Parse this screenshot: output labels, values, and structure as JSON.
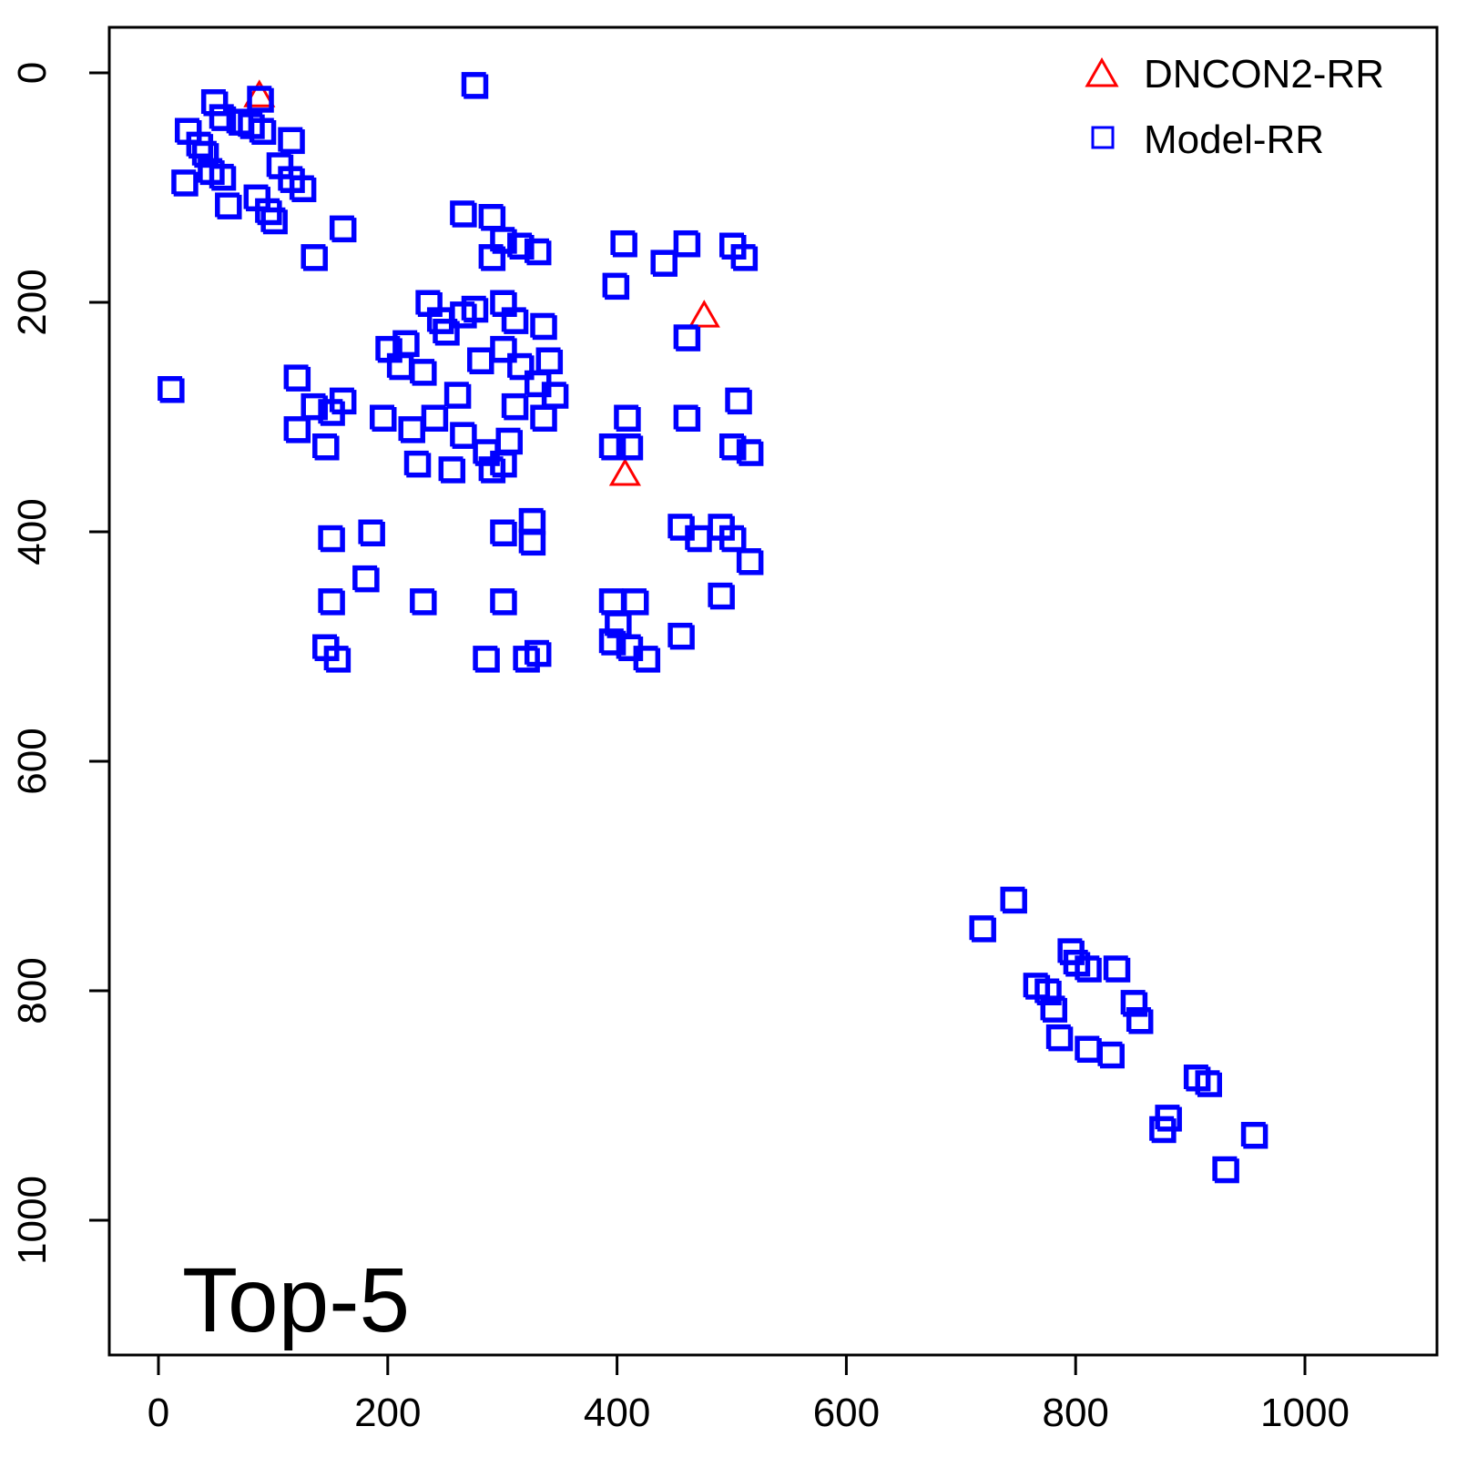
{
  "chart_data": {
    "type": "scatter",
    "title": "",
    "xlabel": "",
    "ylabel": "",
    "xlim": [
      -20,
      1085
    ],
    "ylim": [
      1080,
      -40
    ],
    "y_reversed": true,
    "grid": false,
    "legend_position": "top-right",
    "panel_label": "Top-5",
    "x_ticks": [
      0,
      200,
      400,
      600,
      800,
      1000
    ],
    "y_ticks": [
      0,
      200,
      400,
      600,
      800,
      1000
    ],
    "x_tick_labels": [
      "0",
      "200",
      "400",
      "600",
      "800",
      "1000"
    ],
    "y_tick_labels": [
      "0",
      "200",
      "400",
      "600",
      "800",
      "1000"
    ],
    "series": [
      {
        "name": "DNCON2-RR",
        "marker": "triangle",
        "color": "#ff0000",
        "points": [
          [
            88,
            20
          ],
          [
            476,
            212
          ],
          [
            407,
            350
          ]
        ]
      },
      {
        "name": "Model-RR",
        "marker": "square",
        "color": "#0000ff",
        "points": [
          [
            48,
            25
          ],
          [
            88,
            22
          ],
          [
            55,
            38
          ],
          [
            70,
            42
          ],
          [
            80,
            45
          ],
          [
            90,
            50
          ],
          [
            25,
            50
          ],
          [
            35,
            62
          ],
          [
            40,
            70
          ],
          [
            45,
            85
          ],
          [
            55,
            90
          ],
          [
            22,
            95
          ],
          [
            60,
            115
          ],
          [
            85,
            108
          ],
          [
            95,
            120
          ],
          [
            100,
            128
          ],
          [
            115,
            58
          ],
          [
            105,
            80
          ],
          [
            115,
            92
          ],
          [
            125,
            100
          ],
          [
            135,
            160
          ],
          [
            160,
            135
          ],
          [
            10,
            275
          ],
          [
            120,
            265
          ],
          [
            120,
            310
          ],
          [
            135,
            290
          ],
          [
            150,
            295
          ],
          [
            145,
            325
          ],
          [
            160,
            285
          ],
          [
            150,
            405
          ],
          [
            180,
            440
          ],
          [
            185,
            400
          ],
          [
            150,
            460
          ],
          [
            145,
            500
          ],
          [
            155,
            510
          ],
          [
            275,
            10
          ],
          [
            265,
            122
          ],
          [
            290,
            125
          ],
          [
            300,
            145
          ],
          [
            315,
            150
          ],
          [
            330,
            155
          ],
          [
            290,
            160
          ],
          [
            235,
            200
          ],
          [
            245,
            215
          ],
          [
            265,
            210
          ],
          [
            250,
            225
          ],
          [
            275,
            205
          ],
          [
            215,
            235
          ],
          [
            200,
            240
          ],
          [
            210,
            255
          ],
          [
            230,
            260
          ],
          [
            260,
            280
          ],
          [
            280,
            250
          ],
          [
            300,
            200
          ],
          [
            310,
            215
          ],
          [
            335,
            220
          ],
          [
            300,
            240
          ],
          [
            315,
            255
          ],
          [
            340,
            250
          ],
          [
            330,
            270
          ],
          [
            310,
            290
          ],
          [
            345,
            280
          ],
          [
            335,
            300
          ],
          [
            195,
            300
          ],
          [
            220,
            310
          ],
          [
            240,
            300
          ],
          [
            225,
            340
          ],
          [
            255,
            345
          ],
          [
            265,
            315
          ],
          [
            285,
            330
          ],
          [
            305,
            320
          ],
          [
            300,
            340
          ],
          [
            290,
            345
          ],
          [
            230,
            460
          ],
          [
            300,
            460
          ],
          [
            300,
            400
          ],
          [
            325,
            390
          ],
          [
            325,
            408
          ],
          [
            330,
            505
          ],
          [
            320,
            510
          ],
          [
            285,
            510
          ],
          [
            405,
            148
          ],
          [
            440,
            165
          ],
          [
            460,
            148
          ],
          [
            500,
            150
          ],
          [
            510,
            160
          ],
          [
            398,
            185
          ],
          [
            460,
            230
          ],
          [
            505,
            285
          ],
          [
            408,
            300
          ],
          [
            460,
            300
          ],
          [
            395,
            325
          ],
          [
            410,
            325
          ],
          [
            500,
            325
          ],
          [
            515,
            330
          ],
          [
            455,
            395
          ],
          [
            470,
            405
          ],
          [
            490,
            395
          ],
          [
            500,
            405
          ],
          [
            515,
            425
          ],
          [
            490,
            455
          ],
          [
            395,
            460
          ],
          [
            415,
            460
          ],
          [
            400,
            480
          ],
          [
            395,
            495
          ],
          [
            410,
            500
          ],
          [
            425,
            510
          ],
          [
            455,
            490
          ],
          [
            745,
            720
          ],
          [
            718,
            745
          ],
          [
            795,
            765
          ],
          [
            800,
            775
          ],
          [
            810,
            780
          ],
          [
            765,
            795
          ],
          [
            775,
            800
          ],
          [
            780,
            815
          ],
          [
            835,
            780
          ],
          [
            850,
            810
          ],
          [
            855,
            825
          ],
          [
            785,
            840
          ],
          [
            810,
            850
          ],
          [
            830,
            855
          ],
          [
            905,
            875
          ],
          [
            915,
            880
          ],
          [
            880,
            910
          ],
          [
            875,
            920
          ],
          [
            955,
            925
          ],
          [
            930,
            955
          ]
        ]
      }
    ]
  }
}
